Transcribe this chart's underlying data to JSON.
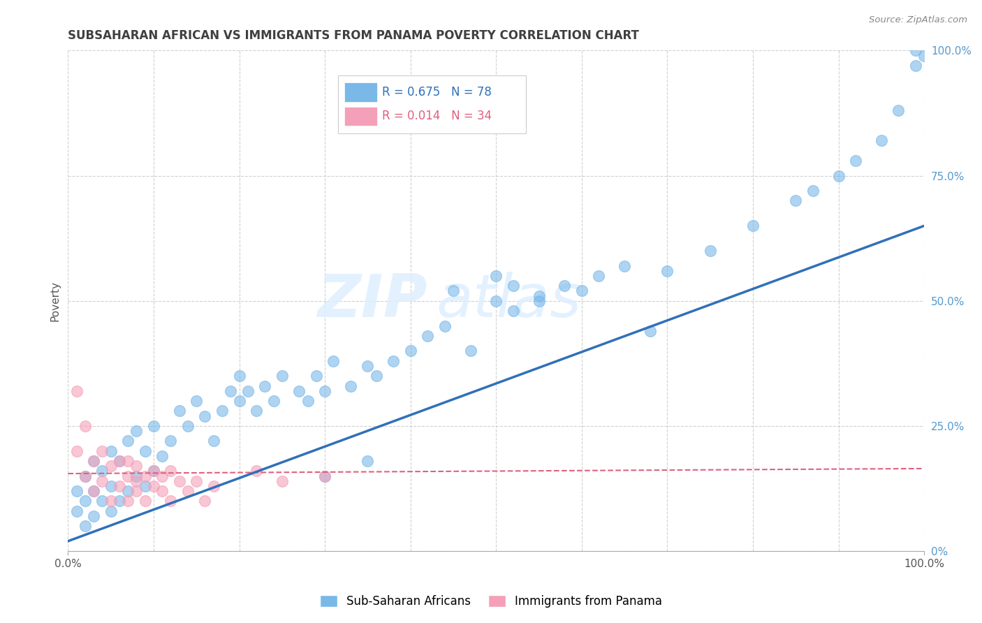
{
  "title": "SUBSAHARAN AFRICAN VS IMMIGRANTS FROM PANAMA POVERTY CORRELATION CHART",
  "source": "Source: ZipAtlas.com",
  "ylabel": "Poverty",
  "xlim": [
    0,
    1
  ],
  "ylim": [
    0,
    1
  ],
  "blue_R": "0.675",
  "blue_N": "78",
  "pink_R": "0.014",
  "pink_N": "34",
  "blue_color": "#7ab8e8",
  "pink_color": "#f4a0b8",
  "blue_line_color": "#3070b8",
  "pink_line_color": "#e06080",
  "watermark_zip": "ZIP",
  "watermark_atlas": "atlas",
  "title_color": "#404040",
  "blue_scatter_x": [
    0.01,
    0.01,
    0.02,
    0.02,
    0.02,
    0.03,
    0.03,
    0.03,
    0.04,
    0.04,
    0.05,
    0.05,
    0.05,
    0.06,
    0.06,
    0.07,
    0.07,
    0.08,
    0.08,
    0.09,
    0.09,
    0.1,
    0.1,
    0.11,
    0.12,
    0.13,
    0.14,
    0.15,
    0.16,
    0.17,
    0.18,
    0.19,
    0.2,
    0.2,
    0.21,
    0.22,
    0.23,
    0.24,
    0.25,
    0.27,
    0.28,
    0.29,
    0.3,
    0.31,
    0.33,
    0.35,
    0.36,
    0.38,
    0.4,
    0.42,
    0.44,
    0.47,
    0.5,
    0.52,
    0.55,
    0.58,
    0.6,
    0.62,
    0.65,
    0.68,
    0.7,
    0.75,
    0.8,
    0.85,
    0.87,
    0.9,
    0.92,
    0.95,
    0.97,
    0.99,
    0.99,
    1.0,
    0.45,
    0.5,
    0.52,
    0.55,
    0.3,
    0.35
  ],
  "blue_scatter_y": [
    0.08,
    0.12,
    0.05,
    0.1,
    0.15,
    0.07,
    0.12,
    0.18,
    0.1,
    0.16,
    0.08,
    0.13,
    0.2,
    0.1,
    0.18,
    0.12,
    0.22,
    0.15,
    0.24,
    0.13,
    0.2,
    0.16,
    0.25,
    0.19,
    0.22,
    0.28,
    0.25,
    0.3,
    0.27,
    0.22,
    0.28,
    0.32,
    0.3,
    0.35,
    0.32,
    0.28,
    0.33,
    0.3,
    0.35,
    0.32,
    0.3,
    0.35,
    0.32,
    0.38,
    0.33,
    0.37,
    0.35,
    0.38,
    0.4,
    0.43,
    0.45,
    0.4,
    0.5,
    0.48,
    0.5,
    0.53,
    0.52,
    0.55,
    0.57,
    0.44,
    0.56,
    0.6,
    0.65,
    0.7,
    0.72,
    0.75,
    0.78,
    0.82,
    0.88,
    0.97,
    1.0,
    0.99,
    0.52,
    0.55,
    0.53,
    0.51,
    0.15,
    0.18
  ],
  "pink_scatter_x": [
    0.01,
    0.01,
    0.02,
    0.02,
    0.03,
    0.03,
    0.04,
    0.04,
    0.05,
    0.05,
    0.06,
    0.06,
    0.07,
    0.07,
    0.07,
    0.08,
    0.08,
    0.08,
    0.09,
    0.09,
    0.1,
    0.1,
    0.11,
    0.11,
    0.12,
    0.12,
    0.13,
    0.14,
    0.15,
    0.16,
    0.17,
    0.22,
    0.25,
    0.3
  ],
  "pink_scatter_y": [
    0.32,
    0.2,
    0.25,
    0.15,
    0.18,
    0.12,
    0.2,
    0.14,
    0.17,
    0.1,
    0.18,
    0.13,
    0.15,
    0.18,
    0.1,
    0.14,
    0.17,
    0.12,
    0.15,
    0.1,
    0.16,
    0.13,
    0.15,
    0.12,
    0.16,
    0.1,
    0.14,
    0.12,
    0.14,
    0.1,
    0.13,
    0.16,
    0.14,
    0.15
  ],
  "blue_trendline_x": [
    0.0,
    1.0
  ],
  "blue_trendline_y": [
    0.02,
    0.65
  ],
  "pink_trendline_x": [
    0.0,
    1.0
  ],
  "pink_trendline_y": [
    0.155,
    0.165
  ],
  "grid_color": "#d0d0d0",
  "background_color": "#ffffff",
  "ytick_positions": [
    0.0,
    0.25,
    0.5,
    0.75,
    1.0
  ],
  "ytick_labels_right": [
    "0%",
    "25.0%",
    "50.0%",
    "75.0%",
    "100.0%"
  ],
  "xtick_positions": [
    0.0,
    1.0
  ],
  "xtick_labels": [
    "0.0%",
    "100.0%"
  ]
}
